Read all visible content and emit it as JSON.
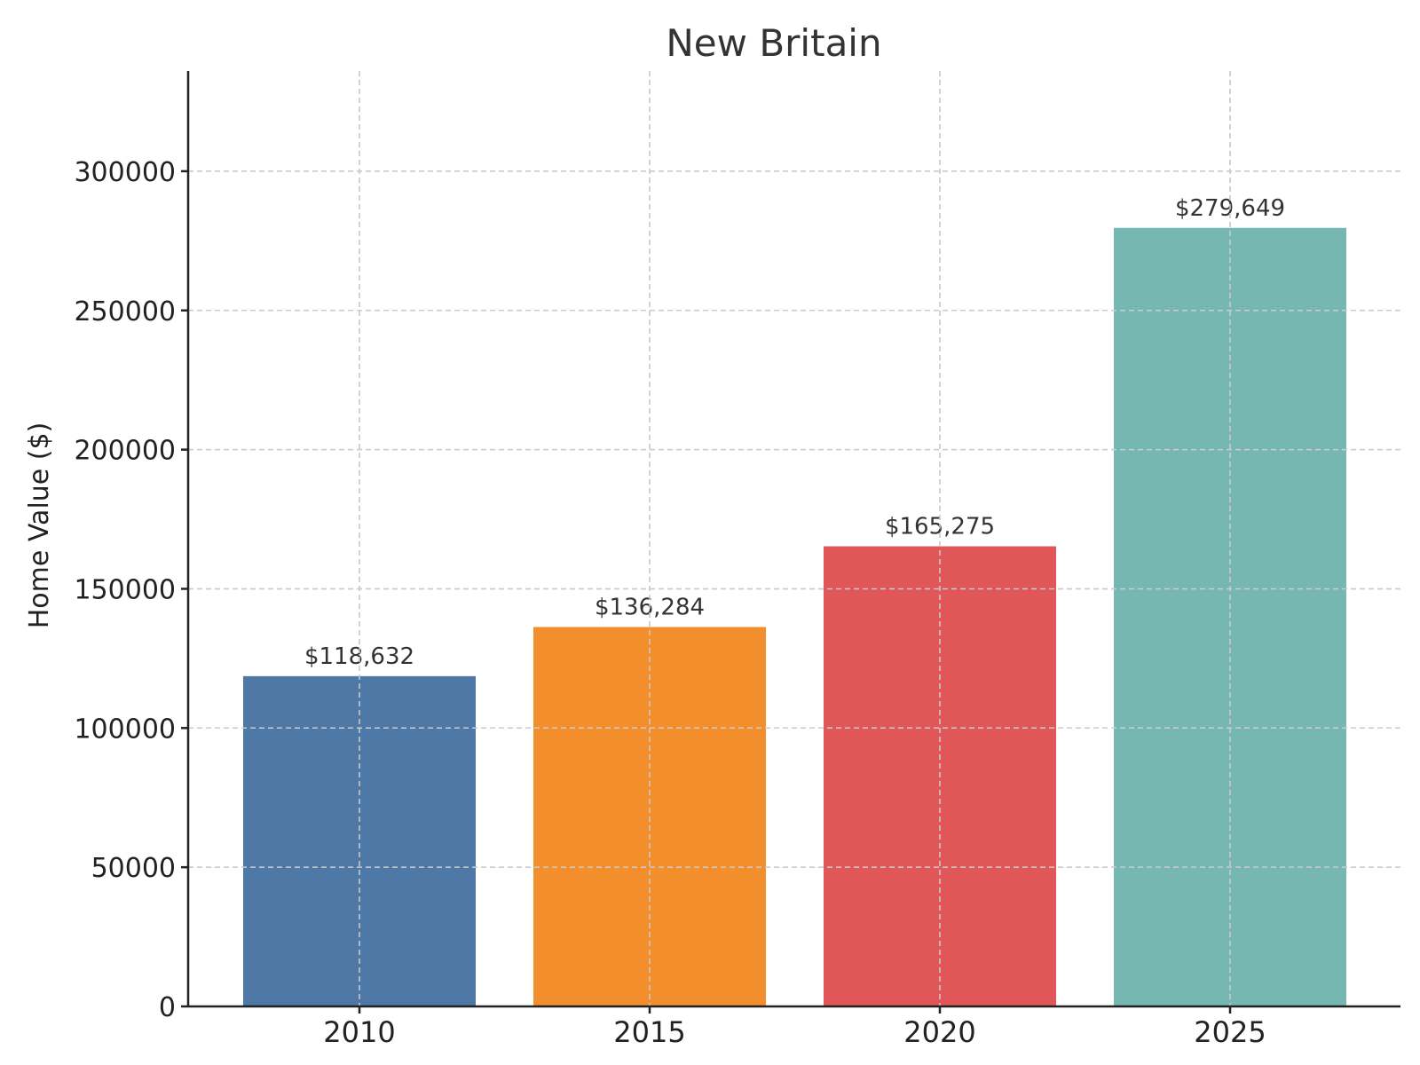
{
  "chart_data": {
    "type": "bar",
    "title": "New Britain",
    "xlabel": "",
    "ylabel": "Home Value ($)",
    "categories": [
      "2010",
      "2015",
      "2020",
      "2025"
    ],
    "values": [
      118632,
      136284,
      165275,
      279649
    ],
    "data_labels": [
      "$118,632",
      "$136,284",
      "$165,275",
      "$279,649"
    ],
    "colors": [
      "#4e79a7",
      "#f28e2b",
      "#e15759",
      "#76b7b2"
    ],
    "ylim": [
      0,
      336000
    ],
    "yticks": [
      0,
      50000,
      100000,
      150000,
      200000,
      250000,
      300000
    ],
    "ytick_labels": [
      "0",
      "50000",
      "100000",
      "150000",
      "200000",
      "250000",
      "300000"
    ],
    "grid": true,
    "legend": "none"
  }
}
